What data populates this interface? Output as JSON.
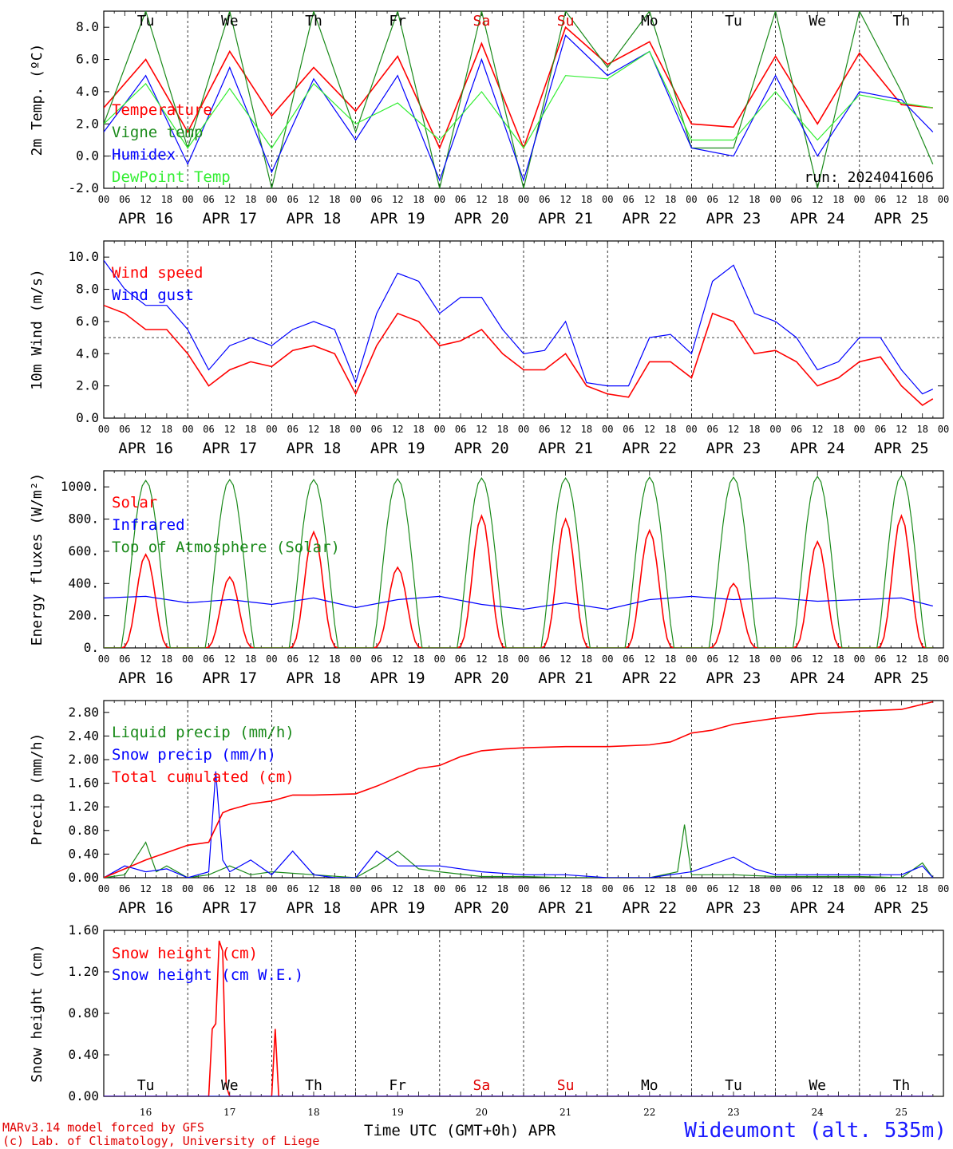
{
  "days": [
    "APR 16",
    "APR 17",
    "APR 18",
    "APR 19",
    "APR 20",
    "APR 21",
    "APR 22",
    "APR 23",
    "APR 24",
    "APR 25"
  ],
  "hour_ticks": [
    "00",
    "06",
    "12",
    "18"
  ],
  "weekdays": [
    {
      "label": "Tu",
      "color": "#000000"
    },
    {
      "label": "We",
      "color": "#000000"
    },
    {
      "label": "Th",
      "color": "#000000"
    },
    {
      "label": "Fr",
      "color": "#000000"
    },
    {
      "label": "Sa",
      "color": "#e00000"
    },
    {
      "label": "Su",
      "color": "#e00000"
    },
    {
      "label": "Mo",
      "color": "#000000"
    },
    {
      "label": "Tu",
      "color": "#000000"
    },
    {
      "label": "We",
      "color": "#000000"
    },
    {
      "label": "Th",
      "color": "#000000"
    }
  ],
  "snow_panel_day_numbers": [
    "16",
    "17",
    "18",
    "19",
    "20",
    "21",
    "22",
    "23",
    "24",
    "25"
  ],
  "footer": {
    "model": "MARv3.14 model forced by GFS",
    "credit": "(c) Lab. of Climatology, University of Liege",
    "time_label": "Time UTC (GMT+0h) APR",
    "station": "Wideumont (alt. 535m)"
  },
  "chart_data": [
    {
      "type": "line",
      "ylabel": "2m Temp. (ºC)",
      "ylim": [
        -2,
        9
      ],
      "yticks": [
        "-2.0",
        "0.0",
        "2.0",
        "4.0",
        "6.0",
        "8.0"
      ],
      "ytick_values": [
        -2,
        0,
        2,
        4,
        6,
        8
      ],
      "ref_line": 0,
      "annotation": "run: 2024041606",
      "series": [
        {
          "name": "Temperature",
          "color": "#ff0000",
          "x_hours": [
            0,
            12,
            24,
            36,
            48,
            60,
            72,
            84,
            96,
            108,
            120,
            132,
            144,
            156,
            168,
            180,
            192,
            204,
            216,
            228,
            237
          ],
          "values": [
            3.0,
            6.0,
            1.5,
            6.5,
            2.5,
            5.5,
            2.8,
            6.2,
            0.5,
            7.0,
            0.5,
            8.0,
            5.7,
            7.1,
            2.0,
            1.8,
            6.2,
            2.0,
            6.4,
            3.2,
            3.0
          ]
        },
        {
          "name": "Vigne temp",
          "color": "#1a8a1a",
          "x_hours": [
            0,
            12,
            24,
            36,
            48,
            60,
            72,
            84,
            96,
            108,
            120,
            132,
            144,
            156,
            168,
            180,
            192,
            204,
            216,
            228,
            237
          ],
          "values": [
            2.0,
            9.0,
            0.5,
            9.0,
            -2.0,
            9.0,
            1.5,
            9.0,
            -2.0,
            9.0,
            -2.0,
            9.0,
            5.5,
            9.0,
            0.5,
            0.5,
            9.0,
            -2.0,
            9.0,
            4.0,
            -0.5
          ]
        },
        {
          "name": "Humidex",
          "color": "#0000ff",
          "x_hours": [
            0,
            12,
            24,
            36,
            48,
            60,
            72,
            84,
            96,
            108,
            120,
            132,
            144,
            156,
            168,
            180,
            192,
            204,
            216,
            228,
            237
          ],
          "values": [
            1.5,
            5.0,
            -0.5,
            5.5,
            -1.0,
            4.8,
            1.0,
            5.0,
            -1.5,
            6.0,
            -1.5,
            7.5,
            5.0,
            6.5,
            0.5,
            0.0,
            5.0,
            0.0,
            4.0,
            3.5,
            1.5
          ]
        },
        {
          "name": "DewPoint Temp",
          "color": "#33ee33",
          "x_hours": [
            0,
            12,
            24,
            36,
            48,
            60,
            72,
            84,
            96,
            108,
            120,
            132,
            144,
            156,
            168,
            180,
            192,
            204,
            216,
            228,
            237
          ],
          "values": [
            2.0,
            4.5,
            0.5,
            4.2,
            0.5,
            4.5,
            2.0,
            3.3,
            1.0,
            4.0,
            0.5,
            5.0,
            4.8,
            6.5,
            1.0,
            1.0,
            4.0,
            1.0,
            3.8,
            3.3,
            3.0
          ]
        }
      ]
    },
    {
      "type": "line",
      "ylabel": "10m Wind (m/s)",
      "ylim": [
        0,
        11
      ],
      "yticks": [
        "0.0",
        "2.0",
        "4.0",
        "6.0",
        "8.0",
        "10.0"
      ],
      "ytick_values": [
        0,
        2,
        4,
        6,
        8,
        10
      ],
      "ref_line": 5,
      "series": [
        {
          "name": "Wind speed",
          "color": "#ff0000",
          "x_hours": [
            0,
            6,
            12,
            18,
            24,
            30,
            36,
            42,
            48,
            54,
            60,
            66,
            72,
            78,
            84,
            90,
            96,
            102,
            108,
            114,
            120,
            126,
            132,
            138,
            144,
            150,
            156,
            162,
            168,
            174,
            180,
            186,
            192,
            198,
            204,
            210,
            216,
            222,
            228,
            234,
            237
          ],
          "values": [
            7.0,
            6.5,
            5.5,
            5.5,
            4.0,
            2.0,
            3.0,
            3.5,
            3.2,
            4.2,
            4.5,
            4.0,
            1.5,
            4.5,
            6.5,
            6.0,
            4.5,
            4.8,
            5.5,
            4.0,
            3.0,
            3.0,
            4.0,
            2.0,
            1.5,
            1.3,
            3.5,
            3.5,
            2.5,
            6.5,
            6.0,
            4.0,
            4.2,
            3.5,
            2.0,
            2.5,
            3.5,
            3.8,
            2.0,
            0.8,
            1.2
          ]
        },
        {
          "name": "Wind gust",
          "color": "#0000ff",
          "x_hours": [
            0,
            6,
            12,
            18,
            24,
            30,
            36,
            42,
            48,
            54,
            60,
            66,
            72,
            78,
            84,
            90,
            96,
            102,
            108,
            114,
            120,
            126,
            132,
            138,
            144,
            150,
            156,
            162,
            168,
            174,
            180,
            186,
            192,
            198,
            204,
            210,
            216,
            222,
            228,
            234,
            237
          ],
          "values": [
            9.8,
            8.0,
            7.0,
            7.0,
            5.5,
            3.0,
            4.5,
            5.0,
            4.5,
            5.5,
            6.0,
            5.5,
            2.2,
            6.5,
            9.0,
            8.5,
            6.5,
            7.5,
            7.5,
            5.5,
            4.0,
            4.2,
            6.0,
            2.2,
            2.0,
            2.0,
            5.0,
            5.2,
            4.0,
            8.5,
            9.5,
            6.5,
            6.0,
            5.0,
            3.0,
            3.5,
            5.0,
            5.0,
            3.0,
            1.5,
            1.8
          ]
        }
      ]
    },
    {
      "type": "line",
      "ylabel": "Energy fluxes (W/m²)",
      "ylim": [
        0,
        1100
      ],
      "yticks": [
        "0.",
        "200.",
        "400.",
        "600.",
        "800.",
        "1000."
      ],
      "ytick_values": [
        0,
        200,
        400,
        600,
        800,
        1000
      ],
      "series": [
        {
          "name": "Solar",
          "color": "#ff0000",
          "peak_hour": 12,
          "daily_peaks": [
            580,
            440,
            720,
            500,
            820,
            800,
            730,
            400,
            660,
            820
          ]
        },
        {
          "name": "Infrared",
          "color": "#0000ff",
          "x_hours": [
            0,
            12,
            24,
            36,
            48,
            60,
            72,
            84,
            96,
            108,
            120,
            132,
            144,
            156,
            168,
            180,
            192,
            204,
            216,
            228,
            237
          ],
          "values": [
            310,
            320,
            280,
            300,
            270,
            310,
            250,
            300,
            320,
            270,
            240,
            280,
            240,
            300,
            320,
            300,
            310,
            290,
            300,
            310,
            260
          ]
        },
        {
          "name": "Top of Atmosphere (Solar)",
          "color": "#1a8a1a",
          "peak_hour": 12,
          "daily_peaks": [
            1040,
            1045,
            1045,
            1050,
            1055,
            1055,
            1060,
            1060,
            1065,
            1070
          ]
        }
      ]
    },
    {
      "type": "line",
      "ylabel": "Precip (mm/h)",
      "ylim": [
        0,
        3.0
      ],
      "yticks": [
        "0.00",
        "0.40",
        "0.80",
        "1.20",
        "1.60",
        "2.00",
        "2.40",
        "2.80"
      ],
      "ytick_values": [
        0,
        0.4,
        0.8,
        1.2,
        1.6,
        2.0,
        2.4,
        2.8
      ],
      "series": [
        {
          "name": "Liquid precip (mm/h)",
          "color": "#1a8a1a",
          "x_hours": [
            0,
            6,
            12,
            15,
            18,
            24,
            30,
            36,
            42,
            48,
            60,
            72,
            78,
            84,
            90,
            96,
            108,
            120,
            132,
            144,
            156,
            164,
            166,
            168,
            180,
            192,
            204,
            216,
            228,
            234,
            237
          ],
          "values": [
            0,
            0.05,
            0.6,
            0.1,
            0.2,
            0,
            0.05,
            0.2,
            0.05,
            0.1,
            0.05,
            0,
            0.2,
            0.45,
            0.15,
            0.1,
            0.02,
            0.02,
            0,
            0,
            0,
            0.1,
            0.9,
            0.05,
            0.05,
            0.02,
            0.02,
            0.02,
            0,
            0.25,
            0
          ]
        },
        {
          "name": "Snow precip (mm/h)",
          "color": "#0000ff",
          "x_hours": [
            0,
            6,
            12,
            18,
            24,
            30,
            32,
            34,
            36,
            42,
            48,
            54,
            60,
            66,
            72,
            78,
            84,
            90,
            96,
            108,
            120,
            132,
            144,
            156,
            168,
            180,
            186,
            192,
            204,
            216,
            228,
            234,
            237
          ],
          "values": [
            0,
            0.2,
            0.1,
            0.15,
            0,
            0.1,
            1.8,
            0.3,
            0.1,
            0.3,
            0.05,
            0.45,
            0.05,
            0,
            0,
            0.45,
            0.2,
            0.2,
            0.2,
            0.1,
            0.05,
            0.05,
            0,
            0,
            0.1,
            0.35,
            0.15,
            0.05,
            0.05,
            0.05,
            0.05,
            0.2,
            0
          ]
        },
        {
          "name": "Total cumulated (cm)",
          "color": "#ff0000",
          "x_hours": [
            0,
            12,
            24,
            30,
            34,
            36,
            42,
            48,
            54,
            60,
            72,
            78,
            84,
            90,
            96,
            102,
            108,
            114,
            120,
            132,
            144,
            156,
            162,
            168,
            174,
            180,
            192,
            204,
            216,
            228,
            237
          ],
          "values": [
            0,
            0.3,
            0.55,
            0.6,
            1.1,
            1.15,
            1.25,
            1.3,
            1.4,
            1.4,
            1.42,
            1.55,
            1.7,
            1.85,
            1.9,
            2.05,
            2.15,
            2.18,
            2.2,
            2.22,
            2.22,
            2.25,
            2.3,
            2.45,
            2.5,
            2.6,
            2.7,
            2.78,
            2.82,
            2.85,
            2.98
          ]
        }
      ]
    },
    {
      "type": "line",
      "ylabel": "Snow height (cm)",
      "ylim": [
        0,
        1.6
      ],
      "yticks": [
        "0.00",
        "0.40",
        "0.80",
        "1.20",
        "1.60"
      ],
      "ytick_values": [
        0,
        0.4,
        0.8,
        1.2,
        1.6
      ],
      "series": [
        {
          "name": "Snow height (cm)",
          "color": "#ff0000",
          "x_hours": [
            0,
            30,
            31,
            32,
            33,
            34,
            35,
            36,
            37,
            48,
            49,
            50,
            51,
            237
          ],
          "values": [
            0,
            0,
            0.65,
            0.7,
            1.5,
            1.4,
            0.1,
            0,
            0,
            0,
            0.65,
            0,
            0,
            0
          ]
        },
        {
          "name": "Snow height (cm W.E.)",
          "color": "#0000ff",
          "x_hours": [
            0,
            237
          ],
          "values": [
            0,
            0
          ]
        }
      ]
    }
  ]
}
